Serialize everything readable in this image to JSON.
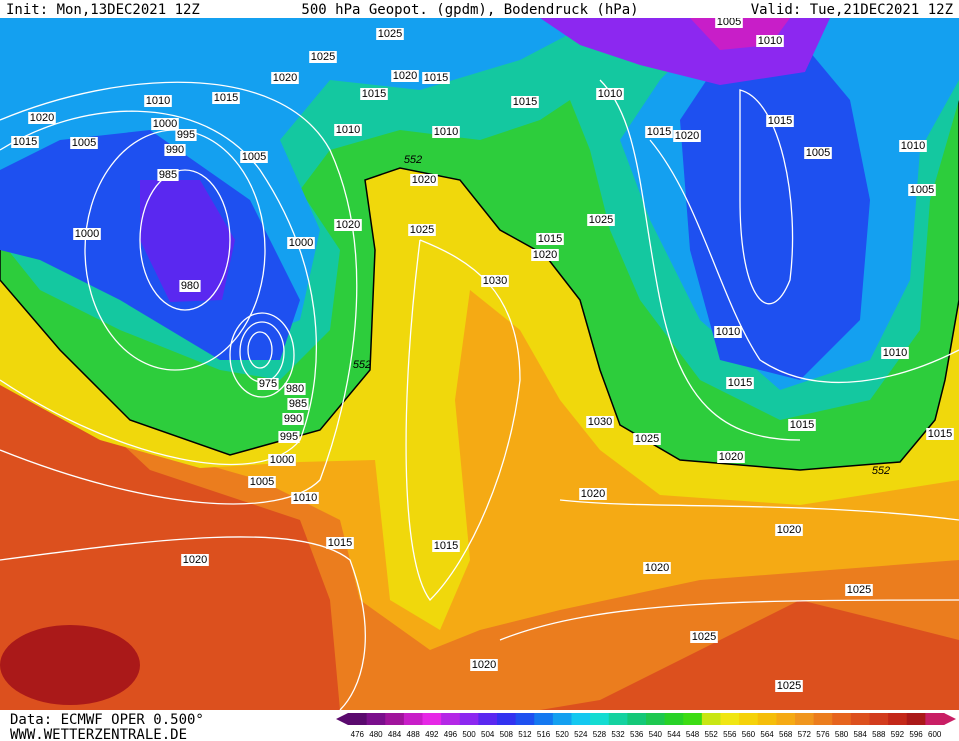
{
  "header": {
    "init": "Init: Mon,13DEC2021 12Z",
    "title": "500 hPa Geopot. (gpdm), Bodendruck (hPa)",
    "valid": "Valid: Tue,21DEC2021 12Z"
  },
  "map": {
    "isobar_labels": [
      "1025",
      "1025",
      "1020",
      "1020",
      "1015",
      "1015",
      "1010",
      "1015",
      "1020",
      "1000",
      "995",
      "1015",
      "1005",
      "990",
      "1010",
      "1010",
      "1005",
      "985",
      "1020",
      "1000",
      "1000",
      "1020",
      "1025",
      "980",
      "1005",
      "1010",
      "1010",
      "1015",
      "1015",
      "1015",
      "1020",
      "1005",
      "1010",
      "1005",
      "1025",
      "1015",
      "1020",
      "1030",
      "1010",
      "1010",
      "1015",
      "1015",
      "1015",
      "1030",
      "1025",
      "1020",
      "975",
      "980",
      "985",
      "990",
      "995",
      "1000",
      "1005",
      "1010",
      "1020",
      "1020",
      "1015",
      "1015",
      "1020",
      "1020",
      "1025",
      "1025",
      "1020",
      "1025"
    ],
    "height_labels": [
      "552",
      "552",
      "552"
    ]
  },
  "footer": {
    "source": "Data: ECMWF OPER 0.500°",
    "website": "WWW.WETTERZENTRALE.DE"
  },
  "colorbar": {
    "labels": [
      "476",
      "480",
      "484",
      "488",
      "492",
      "496",
      "500",
      "504",
      "508",
      "512",
      "516",
      "520",
      "524",
      "528",
      "532",
      "536",
      "540",
      "544",
      "548",
      "552",
      "556",
      "560",
      "564",
      "568",
      "572",
      "576",
      "580",
      "584",
      "588",
      "592",
      "596",
      "600"
    ],
    "colors": [
      "#5a0a6e",
      "#7a0f8c",
      "#a0149c",
      "#c81ec8",
      "#e628e6",
      "#b428e6",
      "#8c28f0",
      "#5a28f0",
      "#3232f0",
      "#1e50f0",
      "#1478f0",
      "#14a0f0",
      "#14c8f0",
      "#14dcd2",
      "#14d2a0",
      "#14c878",
      "#1ec850",
      "#28d228",
      "#3cdc14",
      "#c8e614",
      "#f0e614",
      "#f5d20a",
      "#f5be0a",
      "#f5aa14",
      "#f0961e",
      "#eb7d1e",
      "#e6641e",
      "#dc501e",
      "#d23c1e",
      "#c32819",
      "#aa1919",
      "#c81e64"
    ]
  }
}
